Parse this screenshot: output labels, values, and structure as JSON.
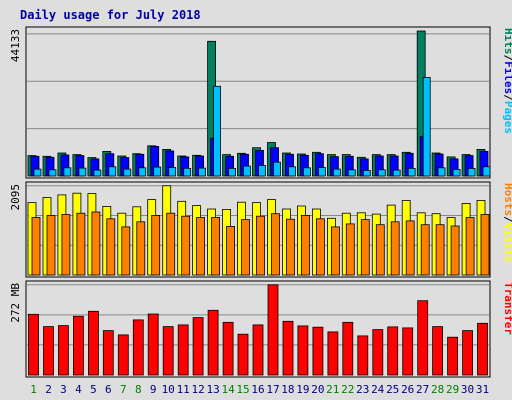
{
  "chart_data": {
    "type": "bar",
    "title": "Daily usage for July 2018",
    "categories": [
      "1",
      "2",
      "3",
      "4",
      "5",
      "6",
      "7",
      "8",
      "9",
      "10",
      "11",
      "12",
      "13",
      "14",
      "15",
      "16",
      "17",
      "18",
      "19",
      "20",
      "21",
      "22",
      "23",
      "24",
      "25",
      "26",
      "27",
      "28",
      "29",
      "30",
      "31"
    ],
    "weekend_days": [
      "1",
      "7",
      "8",
      "14",
      "15",
      "21",
      "22",
      "28",
      "29"
    ],
    "colors": {
      "title": "#0000aa",
      "hits": "#008060",
      "files": "#0000ff",
      "pages": "#00c0ff",
      "visits": "#ffff00",
      "sites": "#ff8000",
      "kbytes": "#ff0000",
      "weekday_label": "#000080",
      "weekend_label": "#008000"
    },
    "panels": [
      {
        "id": "top",
        "ylabel_max": "44133",
        "ymax": 44133,
        "legend": [
          {
            "text": "Hits",
            "color": "#008060"
          },
          {
            "text": "/",
            "color": "#000000"
          },
          {
            "text": "Files",
            "color": "#0000ff"
          },
          {
            "text": "/",
            "color": "#000000"
          },
          {
            "text": "Pages",
            "color": "#00c0ff"
          }
        ],
        "series": [
          {
            "name": "Hits",
            "color": "#008060",
            "values": [
              6200,
              6000,
              7000,
              6500,
              5600,
              7500,
              6100,
              6800,
              9200,
              8100,
              6100,
              6300,
              41000,
              6500,
              6900,
              8600,
              10200,
              7000,
              6700,
              7200,
              6500,
              6500,
              5700,
              6500,
              6500,
              7200,
              44133,
              7000,
              5800,
              6500,
              8100
            ]
          },
          {
            "name": "Files",
            "color": "#0000ff",
            "values": [
              6000,
              5700,
              6400,
              6200,
              5200,
              6800,
              5600,
              6600,
              9000,
              7600,
              5800,
              6100,
              11500,
              6000,
              6600,
              7800,
              8600,
              6600,
              6300,
              6800,
              5900,
              6000,
              5200,
              6100,
              6100,
              6900,
              12000,
              6700,
              5200,
              6200,
              7500
            ]
          },
          {
            "name": "Pages",
            "color": "#00c0ff",
            "values": [
              2100,
              1900,
              2500,
              2400,
              1800,
              2800,
              2100,
              2500,
              2700,
              2600,
              2300,
              2400,
              27300,
              2300,
              3000,
              3200,
              4200,
              2800,
              2500,
              2600,
              2100,
              1900,
              1700,
              1900,
              1800,
              2300,
              30000,
              2500,
              2000,
              2300,
              2800
            ]
          }
        ]
      },
      {
        "id": "mid",
        "ylabel_max": "2095",
        "ymax": 2095,
        "legend": [
          {
            "text": "Hosts",
            "color": "#ff8000"
          },
          {
            "text": "/",
            "color": "#000000"
          },
          {
            "text": "Visits",
            "color": "#ffff00"
          }
        ],
        "series": [
          {
            "name": "Visits",
            "color": "#ffff00",
            "values": [
              1700,
              1820,
              1880,
              1920,
              1910,
              1610,
              1450,
              1600,
              1770,
              2095,
              1730,
              1630,
              1550,
              1540,
              1710,
              1700,
              1770,
              1550,
              1620,
              1550,
              1330,
              1450,
              1460,
              1430,
              1640,
              1750,
              1460,
              1440,
              1350,
              1680,
              1750
            ]
          },
          {
            "name": "Hosts",
            "color": "#ff8000",
            "values": [
              1350,
              1400,
              1420,
              1450,
              1480,
              1320,
              1130,
              1250,
              1400,
              1450,
              1380,
              1350,
              1350,
              1140,
              1300,
              1380,
              1440,
              1310,
              1400,
              1320,
              1130,
              1200,
              1300,
              1180,
              1250,
              1270,
              1180,
              1180,
              1150,
              1350,
              1420
            ]
          }
        ]
      },
      {
        "id": "bottom",
        "ylabel_max": "272 MB",
        "ymax": 272,
        "legend": [
          {
            "text": "Transfer",
            "color": "#ff0000"
          }
        ],
        "series": [
          {
            "name": "Transfer",
            "color": "#ff0000",
            "values": [
              183,
              146,
              149,
              177,
              192,
              134,
              121,
              166,
              184,
              146,
              151,
              173,
              195,
              159,
              123,
              151,
              272,
              162,
              148,
              144,
              130,
              159,
              118,
              137,
              145,
              142,
              224,
              146,
              114,
              134,
              156
            ]
          }
        ]
      }
    ]
  }
}
